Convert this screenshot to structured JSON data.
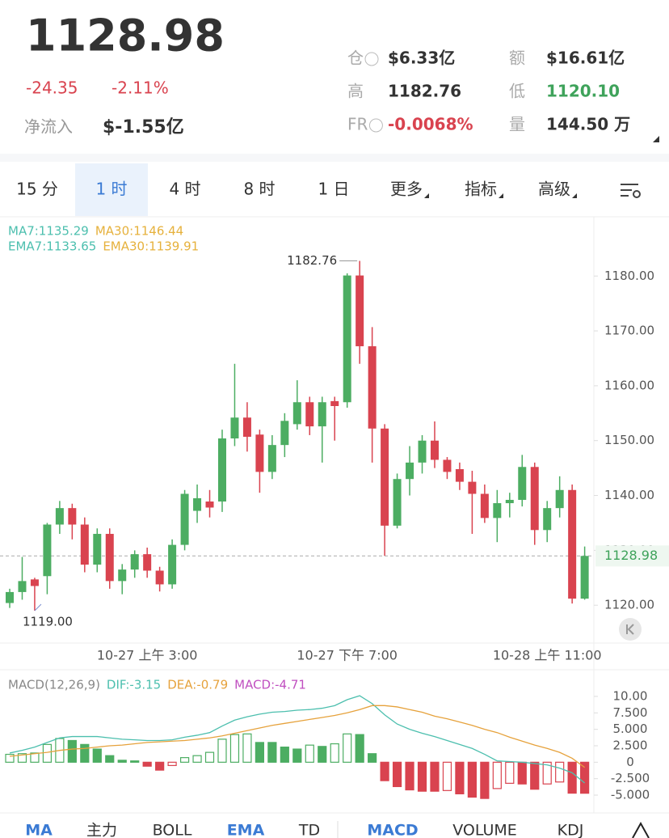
{
  "header": {
    "price": "1128.98",
    "change": "-24.35",
    "change_pct": "-2.11%",
    "net_inflow_label": "净流入",
    "net_inflow": "$-1.55亿",
    "stats": [
      {
        "label": "仓",
        "value": "$6.33亿"
      },
      {
        "label": "额",
        "value": "$16.61亿"
      },
      {
        "label": "高",
        "value": "1182.76"
      },
      {
        "label": "低",
        "value": "1120.10"
      },
      {
        "label": "FR",
        "value": "-0.0068%"
      },
      {
        "label": "量",
        "value": "144.50 万"
      }
    ]
  },
  "intervals": [
    "15 分",
    "1 时",
    "4 时",
    "8 时",
    "1 日",
    "更多",
    "指标",
    "高级"
  ],
  "active_interval": 1,
  "indicator_tabs": [
    "MA",
    "主力",
    "BOLL",
    "EMA",
    "TD",
    "MACD",
    "VOLUME",
    "KDJ"
  ],
  "active_indicators": [
    0,
    3,
    5
  ],
  "chart_data": [
    {
      "type": "candlestick",
      "legend": [
        {
          "name": "MA7:1135.29",
          "color": "#4cbfae"
        },
        {
          "name": "MA30:1146.44",
          "color": "#e6b13c"
        },
        {
          "name": "EMA7:1133.65",
          "color": "#4cbfae"
        },
        {
          "name": "EMA30:1139.91",
          "color": "#e6b13c"
        }
      ],
      "categories": [
        null,
        null,
        null,
        null,
        null,
        null,
        null,
        null,
        null,
        null,
        null,
        "10-27 上午 3:00",
        null,
        null,
        null,
        null,
        null,
        null,
        null,
        null,
        null,
        null,
        null,
        null,
        null,
        null,
        null,
        "10-27 下午 7:00",
        null,
        null,
        null,
        null,
        null,
        null,
        null,
        null,
        null,
        null,
        null,
        null,
        null,
        null,
        null,
        "10-28 上午 11:00",
        null,
        null,
        null
      ],
      "open": [
        1120.4,
        1122.4,
        1124.7,
        1125.3,
        1134.7,
        1137.7,
        1134.7,
        1127.4,
        1133,
        1124.4,
        1126.5,
        1129.3,
        1126.3,
        1123.8,
        1131,
        1137.2,
        1138.9,
        1138.9,
        1150.4,
        1154.2,
        1151.1,
        1144.3,
        1149.2,
        1153,
        1157,
        1152.6,
        1157.2,
        1157,
        1180.1,
        1167.2,
        1152.2,
        1134.5,
        1143,
        1146,
        1150,
        1146.5,
        1144.8,
        1142.5,
        1140.3,
        1135.9,
        1138.6,
        1139.2,
        1145.2,
        1133.7,
        1137.7,
        1141,
        1121.2
      ],
      "high": [
        1123,
        1128.8,
        1125,
        1135,
        1139,
        1138.5,
        1136,
        1134,
        1134,
        1127.5,
        1130,
        1130.5,
        1127,
        1132,
        1141,
        1142,
        1141,
        1152,
        1164,
        1157,
        1152,
        1151,
        1155,
        1161,
        1158,
        1158,
        1158,
        1180.5,
        1182.76,
        1170.7,
        1153,
        1144,
        1149,
        1151,
        1153.5,
        1147,
        1146,
        1144.5,
        1142,
        1141,
        1140.5,
        1147.4,
        1146,
        1139,
        1143.5,
        1142,
        1130.7
      ],
      "low": [
        1119.5,
        1121,
        1119,
        1122,
        1133,
        1132,
        1126,
        1126,
        1123,
        1122,
        1125,
        1125,
        1122.5,
        1123,
        1130,
        1135,
        1136,
        1137,
        1149,
        1148,
        1140.5,
        1143,
        1147,
        1152,
        1151,
        1146,
        1150,
        1156,
        1164,
        1146,
        1129,
        1134,
        1140,
        1144,
        1145,
        1143,
        1141,
        1133,
        1135,
        1131.5,
        1136,
        1138,
        1131,
        1131.5,
        1136,
        1120.3,
        1121
      ],
      "close": [
        1122.4,
        1124.4,
        1123.5,
        1134.7,
        1137.7,
        1134.7,
        1127.4,
        1133,
        1124.4,
        1126.5,
        1129.3,
        1126.3,
        1123.8,
        1131,
        1140.3,
        1139.5,
        1137.8,
        1150.4,
        1154.2,
        1150.7,
        1144.3,
        1149.2,
        1153.6,
        1157,
        1152.6,
        1157,
        1156.3,
        1180.1,
        1167.2,
        1152.2,
        1134.5,
        1143,
        1146,
        1150,
        1146.5,
        1144.3,
        1142.5,
        1140.3,
        1135.9,
        1138.6,
        1139.2,
        1145.2,
        1133.7,
        1137.7,
        1141,
        1121.2,
        1128.98
      ],
      "up_color": "#4cad62",
      "down_color": "#d9434f",
      "high_label": 1182.76,
      "low_label": {
        "value": 1119,
        "label": "1119.00"
      },
      "last_price": 1128.98,
      "ylim": [
        1113.1,
        1190.8
      ],
      "yticks": [
        {
          "value": 1120,
          "label": "1120.00"
        },
        {
          "value": 1130,
          "label": "1130.00"
        },
        {
          "value": 1140,
          "label": "1140.00"
        },
        {
          "value": 1150,
          "label": "1150.00"
        },
        {
          "value": 1160,
          "label": "1160.00"
        },
        {
          "value": 1170,
          "label": "1170.00"
        },
        {
          "value": 1180,
          "label": "1180.00"
        }
      ]
    },
    {
      "type": "macd",
      "title": "MACD(12,26,9)",
      "series": [
        {
          "name": "DIF:-3.15",
          "color": "#4cbfae",
          "values": [
            1.4,
            1.8,
            2.3,
            3.0,
            3.7,
            3.9,
            3.9,
            3.9,
            3.7,
            3.5,
            3.4,
            3.3,
            3.3,
            3.4,
            3.8,
            4.1,
            4.5,
            5.5,
            6.4,
            6.9,
            7.3,
            7.6,
            7.7,
            7.9,
            8.0,
            8.2,
            8.6,
            9.5,
            10.1,
            8.9,
            7.2,
            5.8,
            5.0,
            4.4,
            3.9,
            3.3,
            2.7,
            2.1,
            1.2,
            0.2,
            0.1,
            0.0,
            -0.2,
            -0.4,
            -0.9,
            -1.6,
            -3.15
          ]
        },
        {
          "name": "DEA:-0.79",
          "color": "#e6a23c",
          "values": [
            0.9,
            1.1,
            1.3,
            1.5,
            1.8,
            2.0,
            2.1,
            2.3,
            2.5,
            2.6,
            2.8,
            3.0,
            3.1,
            3.2,
            3.3,
            3.5,
            3.7,
            4.0,
            4.4,
            4.8,
            5.2,
            5.6,
            5.9,
            6.2,
            6.5,
            6.8,
            7.1,
            7.5,
            8.0,
            8.6,
            8.6,
            8.4,
            8.0,
            7.6,
            7.0,
            6.6,
            6.1,
            5.6,
            5.0,
            4.5,
            3.8,
            3.2,
            2.6,
            2.1,
            1.5,
            0.6,
            -0.79
          ]
        }
      ],
      "histogram": {
        "name": "MACD:-4.71",
        "color": "#c04fc0",
        "values": [
          1.2,
          1.3,
          1.4,
          2.7,
          3.6,
          3.3,
          2.7,
          2.0,
          1.0,
          0.3,
          0.2,
          -0.6,
          -1.2,
          -0.5,
          0.7,
          1.0,
          1.5,
          3.5,
          4.2,
          4.3,
          3.0,
          3.0,
          2.3,
          2.0,
          2.6,
          2.4,
          2.8,
          4.3,
          4.2,
          1.3,
          -2.8,
          -3.7,
          -4.2,
          -4.4,
          -4.4,
          -4.3,
          -4.8,
          -5.3,
          -5.5,
          -4.0,
          -3.2,
          -3.3,
          -4.1,
          -3.3,
          -3.0,
          -4.7,
          -4.71
        ]
      },
      "up_color": "#4cad62",
      "down_color": "#d9434f",
      "ylim": [
        -7.7,
        13.8
      ],
      "yticks": [
        {
          "value": 10,
          "label": "10.00"
        },
        {
          "value": 7.5,
          "label": "7.500"
        },
        {
          "value": 5,
          "label": "5.000"
        },
        {
          "value": 2.5,
          "label": "2.500"
        },
        0,
        {
          "value": -2.5,
          "label": "-2.500"
        },
        {
          "value": -5,
          "label": "-5.000"
        }
      ]
    }
  ]
}
